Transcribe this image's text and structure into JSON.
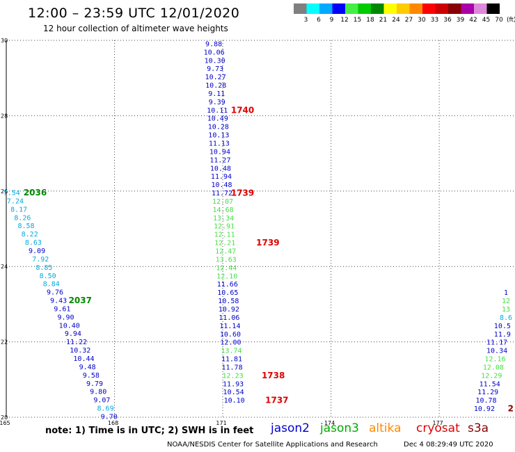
{
  "header": {
    "title": "12:00 – 23:59 UTC 12/01/2020",
    "subtitle": "12 hour collection of altimeter wave heights"
  },
  "colorbar": {
    "labels": [
      "3",
      "6",
      "9",
      "12",
      "15",
      "18",
      "21",
      "24",
      "27",
      "30",
      "33",
      "36",
      "39",
      "42",
      "45",
      "70"
    ],
    "unit": "(ft)",
    "colors": [
      "#808080",
      "#00ffff",
      "#00aaff",
      "#0000ff",
      "#44ee44",
      "#00cc00",
      "#008800",
      "#ffff00",
      "#ffcc00",
      "#ff8800",
      "#ff0000",
      "#cc0000",
      "#880000",
      "#aa00aa",
      "#dd88dd",
      "#000000"
    ]
  },
  "footer": {
    "note": "note: 1) Time is in UTC; 2) SWH is in feet",
    "legend": [
      {
        "name": "jason2",
        "color": "#0000cc"
      },
      {
        "name": "jason3",
        "color": "#00aa00"
      },
      {
        "name": "altika",
        "color": "#ff8800"
      },
      {
        "name": "cryosat",
        "color": "#dd0000"
      },
      {
        "name": "s3a",
        "color": "#880000"
      }
    ],
    "credit": "NOAA/NESDIS Center for Satellite Applications and Research",
    "timestamp": "Dec  4 08:29:49 UTC 2020"
  },
  "chart_data": {
    "type": "scatter",
    "title": "12:00 – 23:59 UTC 12/01/2020",
    "subtitle": "12 hour collection of altimeter wave heights",
    "xlim": [
      165,
      179.1
    ],
    "ylim": [
      20,
      30
    ],
    "x_ticks": [
      "165",
      "168",
      "171",
      "174",
      "177"
    ],
    "y_ticks": [
      "20",
      "22",
      "24",
      "26",
      "28",
      "30"
    ],
    "grid": true,
    "points": [
      {
        "x": 170.75,
        "y": 29.9,
        "t": "9.88",
        "c": "#0000cc"
      },
      {
        "x": 170.76,
        "y": 29.68,
        "t": "10.06",
        "c": "#0000cc"
      },
      {
        "x": 170.78,
        "y": 29.46,
        "t": "10.30",
        "c": "#0000cc"
      },
      {
        "x": 170.79,
        "y": 29.24,
        "t": "9.73",
        "c": "#0000cc"
      },
      {
        "x": 170.8,
        "y": 29.02,
        "t": "10.27",
        "c": "#0000cc"
      },
      {
        "x": 170.81,
        "y": 28.8,
        "t": "10.28",
        "c": "#0000cc"
      },
      {
        "x": 170.83,
        "y": 28.58,
        "t": "9.11",
        "c": "#0000cc"
      },
      {
        "x": 170.84,
        "y": 28.36,
        "t": "9.39",
        "c": "#0000cc"
      },
      {
        "x": 170.85,
        "y": 28.14,
        "t": "10.11",
        "c": "#0000cc"
      },
      {
        "x": 170.86,
        "y": 27.92,
        "t": "10.49",
        "c": "#0000cc"
      },
      {
        "x": 170.88,
        "y": 27.7,
        "t": "10.28",
        "c": "#0000cc"
      },
      {
        "x": 170.89,
        "y": 27.48,
        "t": "10.13",
        "c": "#0000cc"
      },
      {
        "x": 170.9,
        "y": 27.26,
        "t": "11.13",
        "c": "#0000cc"
      },
      {
        "x": 170.92,
        "y": 27.04,
        "t": "10.94",
        "c": "#0000cc"
      },
      {
        "x": 170.93,
        "y": 26.82,
        "t": "11.27",
        "c": "#0000cc"
      },
      {
        "x": 170.94,
        "y": 26.6,
        "t": "10.48",
        "c": "#0000cc"
      },
      {
        "x": 170.96,
        "y": 26.38,
        "t": "11.94",
        "c": "#0000cc"
      },
      {
        "x": 170.97,
        "y": 26.16,
        "t": "10.48",
        "c": "#0000cc"
      },
      {
        "x": 170.98,
        "y": 25.94,
        "t": "11.72",
        "c": "#0000cc"
      },
      {
        "x": 171.0,
        "y": 25.72,
        "t": "12.07",
        "c": "#44dd44"
      },
      {
        "x": 171.01,
        "y": 25.5,
        "t": "14.68",
        "c": "#44dd44"
      },
      {
        "x": 171.02,
        "y": 25.28,
        "t": "13.34",
        "c": "#44dd44"
      },
      {
        "x": 171.04,
        "y": 25.06,
        "t": "12.91",
        "c": "#44dd44"
      },
      {
        "x": 171.05,
        "y": 24.84,
        "t": "12.11",
        "c": "#44dd44"
      },
      {
        "x": 171.06,
        "y": 24.62,
        "t": "12.21",
        "c": "#44dd44"
      },
      {
        "x": 171.08,
        "y": 24.4,
        "t": "12.47",
        "c": "#44dd44"
      },
      {
        "x": 171.09,
        "y": 24.18,
        "t": "13.63",
        "c": "#44dd44"
      },
      {
        "x": 171.1,
        "y": 23.96,
        "t": "12.44",
        "c": "#44dd44"
      },
      {
        "x": 171.12,
        "y": 23.74,
        "t": "12.10",
        "c": "#44dd44"
      },
      {
        "x": 171.13,
        "y": 23.52,
        "t": "11.66",
        "c": "#0000cc"
      },
      {
        "x": 171.14,
        "y": 23.3,
        "t": "10.65",
        "c": "#0000cc"
      },
      {
        "x": 171.16,
        "y": 23.08,
        "t": "10.58",
        "c": "#0000cc"
      },
      {
        "x": 171.17,
        "y": 22.86,
        "t": "10.92",
        "c": "#0000cc"
      },
      {
        "x": 171.18,
        "y": 22.64,
        "t": "11.06",
        "c": "#0000cc"
      },
      {
        "x": 171.2,
        "y": 22.42,
        "t": "11.14",
        "c": "#0000cc"
      },
      {
        "x": 171.21,
        "y": 22.2,
        "t": "10.60",
        "c": "#0000cc"
      },
      {
        "x": 171.22,
        "y": 21.98,
        "t": "12.00",
        "c": "#0000cc"
      },
      {
        "x": 171.24,
        "y": 21.76,
        "t": "13.74",
        "c": "#44dd44"
      },
      {
        "x": 171.25,
        "y": 21.54,
        "t": "11.81",
        "c": "#0000cc"
      },
      {
        "x": 171.26,
        "y": 21.32,
        "t": "11.78",
        "c": "#0000cc"
      },
      {
        "x": 171.28,
        "y": 21.1,
        "t": "12.23",
        "c": "#44dd44"
      },
      {
        "x": 171.29,
        "y": 20.88,
        "t": "11.93",
        "c": "#0000cc"
      },
      {
        "x": 171.3,
        "y": 20.66,
        "t": "10.54",
        "c": "#0000cc"
      },
      {
        "x": 171.32,
        "y": 20.44,
        "t": "10.10",
        "c": "#0000cc"
      },
      {
        "x": 165.15,
        "y": 25.95,
        "t": "7.54",
        "c": "#00aadd"
      },
      {
        "x": 165.25,
        "y": 25.73,
        "t": "7.24",
        "c": "#00aadd"
      },
      {
        "x": 165.35,
        "y": 25.51,
        "t": "8.17",
        "c": "#00aadd"
      },
      {
        "x": 165.45,
        "y": 25.29,
        "t": "8.26",
        "c": "#00aadd"
      },
      {
        "x": 165.55,
        "y": 25.07,
        "t": "8.58",
        "c": "#00aadd"
      },
      {
        "x": 165.65,
        "y": 24.85,
        "t": "8.22",
        "c": "#00aadd"
      },
      {
        "x": 165.75,
        "y": 24.63,
        "t": "8.63",
        "c": "#00aadd"
      },
      {
        "x": 165.85,
        "y": 24.41,
        "t": "9.09",
        "c": "#0000cc"
      },
      {
        "x": 165.95,
        "y": 24.19,
        "t": "7.92",
        "c": "#00aadd"
      },
      {
        "x": 166.05,
        "y": 23.97,
        "t": "8.85",
        "c": "#00aadd"
      },
      {
        "x": 166.15,
        "y": 23.75,
        "t": "8.50",
        "c": "#00aadd"
      },
      {
        "x": 166.25,
        "y": 23.53,
        "t": "8.84",
        "c": "#00aadd"
      },
      {
        "x": 166.35,
        "y": 23.31,
        "t": "9.76",
        "c": "#0000cc"
      },
      {
        "x": 166.45,
        "y": 23.09,
        "t": "9.43",
        "c": "#0000cc"
      },
      {
        "x": 166.55,
        "y": 22.87,
        "t": "9.61",
        "c": "#0000cc"
      },
      {
        "x": 166.65,
        "y": 22.65,
        "t": "9.90",
        "c": "#0000cc"
      },
      {
        "x": 166.75,
        "y": 22.43,
        "t": "10.40",
        "c": "#0000cc"
      },
      {
        "x": 166.85,
        "y": 22.21,
        "t": "9.94",
        "c": "#0000cc"
      },
      {
        "x": 166.95,
        "y": 21.99,
        "t": "11.22",
        "c": "#0000cc"
      },
      {
        "x": 167.05,
        "y": 21.77,
        "t": "10.32",
        "c": "#0000cc"
      },
      {
        "x": 167.15,
        "y": 21.55,
        "t": "10.44",
        "c": "#0000cc"
      },
      {
        "x": 167.25,
        "y": 21.33,
        "t": "9.48",
        "c": "#0000cc"
      },
      {
        "x": 167.35,
        "y": 21.11,
        "t": "9.58",
        "c": "#0000cc"
      },
      {
        "x": 167.45,
        "y": 20.89,
        "t": "9.79",
        "c": "#0000cc"
      },
      {
        "x": 167.55,
        "y": 20.67,
        "t": "9.80",
        "c": "#0000cc"
      },
      {
        "x": 167.65,
        "y": 20.45,
        "t": "9.07",
        "c": "#0000cc"
      },
      {
        "x": 167.75,
        "y": 20.23,
        "t": "8.69",
        "c": "#00aadd"
      },
      {
        "x": 167.85,
        "y": 20.01,
        "t": "9.70",
        "c": "#0000cc"
      },
      {
        "x": 178.85,
        "y": 23.3,
        "t": "1",
        "c": "#0000cc"
      },
      {
        "x": 178.85,
        "y": 23.08,
        "t": "12",
        "c": "#44dd44"
      },
      {
        "x": 178.85,
        "y": 22.86,
        "t": "13",
        "c": "#44dd44"
      },
      {
        "x": 178.85,
        "y": 22.64,
        "t": "8.6",
        "c": "#00aadd"
      },
      {
        "x": 178.75,
        "y": 22.42,
        "t": "10.5",
        "c": "#0000cc"
      },
      {
        "x": 178.75,
        "y": 22.2,
        "t": "11.9",
        "c": "#0000cc"
      },
      {
        "x": 178.6,
        "y": 21.98,
        "t": "11.17",
        "c": "#0000cc"
      },
      {
        "x": 178.6,
        "y": 21.76,
        "t": "10.34",
        "c": "#0000cc"
      },
      {
        "x": 178.55,
        "y": 21.54,
        "t": "12.16",
        "c": "#44dd44"
      },
      {
        "x": 178.5,
        "y": 21.32,
        "t": "12.08",
        "c": "#44dd44"
      },
      {
        "x": 178.45,
        "y": 21.1,
        "t": "12.29",
        "c": "#44dd44"
      },
      {
        "x": 178.4,
        "y": 20.88,
        "t": "11.54",
        "c": "#0000cc"
      },
      {
        "x": 178.35,
        "y": 20.66,
        "t": "11.29",
        "c": "#0000cc"
      },
      {
        "x": 178.3,
        "y": 20.44,
        "t": "10.78",
        "c": "#0000cc"
      },
      {
        "x": 178.25,
        "y": 20.22,
        "t": "10.92",
        "c": "#0000cc"
      }
    ],
    "pass_times": [
      {
        "x": 171.55,
        "y": 28.14,
        "t": "1740",
        "c": "#dd0000"
      },
      {
        "x": 171.55,
        "y": 25.94,
        "t": "1739",
        "c": "#dd0000"
      },
      {
        "x": 172.25,
        "y": 24.62,
        "t": "1739",
        "c": "#dd0000"
      },
      {
        "x": 172.4,
        "y": 21.1,
        "t": "1738",
        "c": "#dd0000"
      },
      {
        "x": 172.5,
        "y": 20.44,
        "t": "1737",
        "c": "#dd0000"
      },
      {
        "x": 165.8,
        "y": 25.95,
        "t": "2036",
        "c": "#008800"
      },
      {
        "x": 167.05,
        "y": 23.09,
        "t": "2037",
        "c": "#008800"
      },
      {
        "x": 178.98,
        "y": 20.22,
        "t": "2",
        "c": "#880000"
      }
    ]
  }
}
